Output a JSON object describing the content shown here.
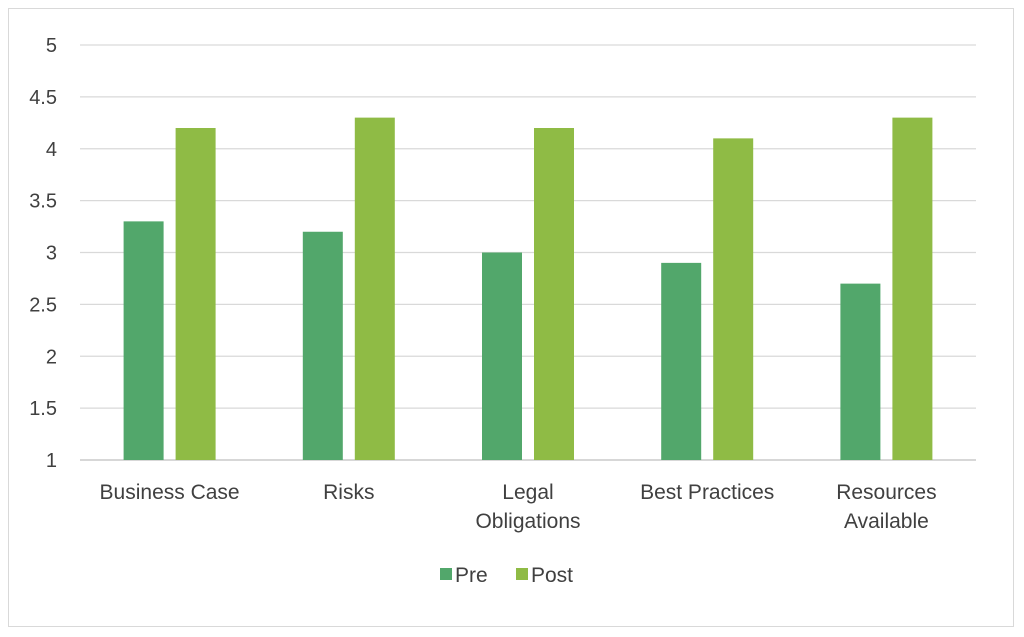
{
  "chart_data": {
    "type": "bar",
    "categories": [
      "Business Case",
      "Risks",
      "Legal Obligations",
      "Best Practices",
      "Resources Available"
    ],
    "category_lines": [
      [
        "Business Case"
      ],
      [
        "Risks"
      ],
      [
        "Legal",
        "Obligations"
      ],
      [
        "Best Practices"
      ],
      [
        "Resources",
        "Available"
      ]
    ],
    "series": [
      {
        "name": "Pre",
        "values": [
          3.3,
          3.2,
          3.0,
          2.9,
          2.7
        ],
        "color": "#52a76b"
      },
      {
        "name": "Post",
        "values": [
          4.2,
          4.3,
          4.2,
          4.1,
          4.3
        ],
        "color": "#8fbb45"
      }
    ],
    "yticks": [
      "1",
      "1.5",
      "2",
      "2.5",
      "3",
      "3.5",
      "4",
      "4.5",
      "5"
    ],
    "ylim": [
      1,
      5
    ],
    "grid": true,
    "gridColor": "#d9d9d9",
    "axisColor": "#bfbfbf",
    "legend_position": "bottom"
  }
}
